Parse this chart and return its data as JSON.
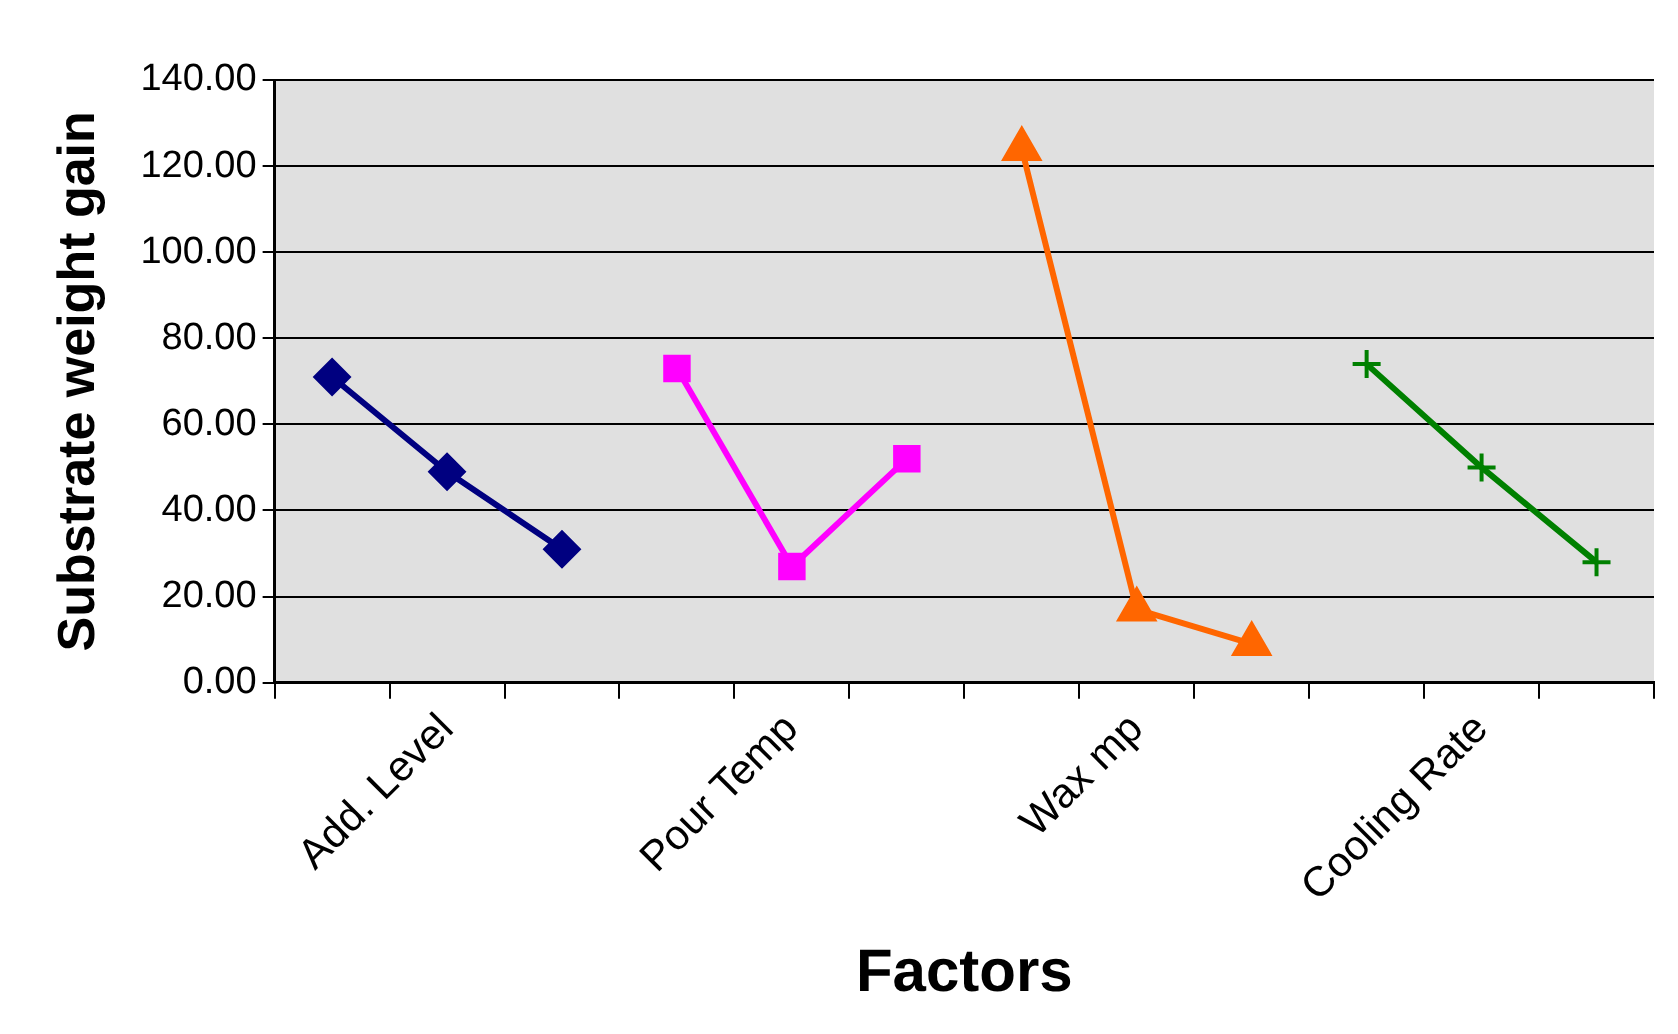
{
  "chart_data": {
    "type": "line",
    "xlabel": "Factors",
    "ylabel": "Substrate weight gain",
    "categories": [
      null,
      "Add. Level",
      null,
      null,
      "Pour Temp",
      null,
      null,
      "Wax mp",
      null,
      null,
      "Cooling Rate",
      null
    ],
    "series": [
      {
        "color": "#000080",
        "marker": "diamond",
        "values": [
          71,
          49,
          31,
          null,
          null,
          null,
          null,
          null,
          null,
          null,
          null,
          null
        ]
      },
      {
        "color": "#ff00ff",
        "marker": "square",
        "values": [
          null,
          null,
          null,
          73,
          27,
          52,
          null,
          null,
          null,
          null,
          null,
          null
        ]
      },
      {
        "color": "#ff6600",
        "marker": "triangle",
        "values": [
          null,
          null,
          null,
          null,
          null,
          null,
          124,
          17,
          9,
          null,
          null,
          null
        ]
      },
      {
        "color": "#008000",
        "marker": "cross",
        "values": [
          null,
          null,
          null,
          null,
          null,
          null,
          null,
          null,
          null,
          74,
          50,
          28
        ]
      }
    ],
    "ylim": [
      0,
      140
    ],
    "yticks": [
      {
        "value": 0,
        "label": "0.00"
      },
      {
        "value": 20,
        "label": "20.00"
      },
      {
        "value": 40,
        "label": "40.00"
      },
      {
        "value": 60,
        "label": "60.00"
      },
      {
        "value": 80,
        "label": "80.00"
      },
      {
        "value": 100,
        "label": "100.00"
      },
      {
        "value": 120,
        "label": "120.00"
      },
      {
        "value": 140,
        "label": "140.00"
      }
    ],
    "grid": "y",
    "legend": false,
    "line_style": "solid"
  }
}
